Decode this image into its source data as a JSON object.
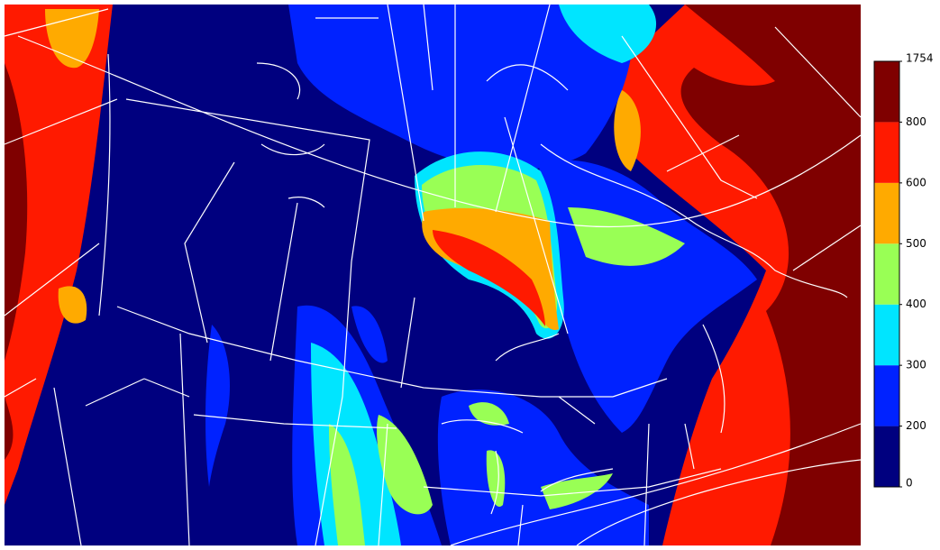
{
  "legend": {
    "ticks": [
      0,
      200,
      300,
      400,
      500,
      600,
      800,
      1754
    ],
    "colors": [
      "#00007f",
      "#0022ff",
      "#00e5ff",
      "#99ff55",
      "#ffaa00",
      "#ff1a00",
      "#7f0000"
    ]
  }
}
